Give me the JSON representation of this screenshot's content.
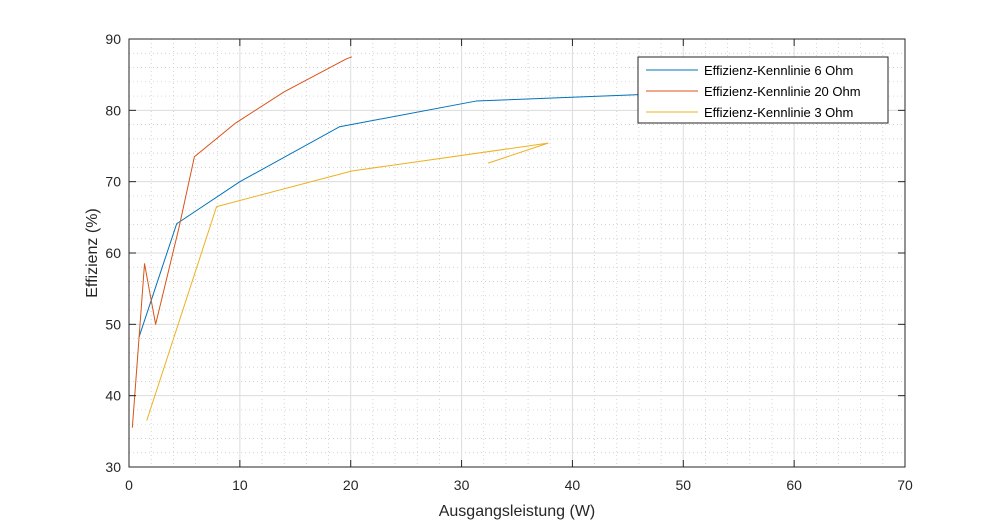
{
  "chart_data": {
    "type": "line",
    "title": "",
    "xlabel": "Ausgangsleistung (W)",
    "ylabel": "Effizienz (%)",
    "xlim": [
      0,
      70
    ],
    "ylim": [
      30,
      90
    ],
    "xticks": [
      0,
      10,
      20,
      30,
      40,
      50,
      60,
      70
    ],
    "yticks": [
      30,
      40,
      50,
      60,
      70,
      80,
      90
    ],
    "grid": true,
    "minor_grid": true,
    "legend_position": "top-right",
    "series": [
      {
        "name": "Effizienz-Kennlinie 6 Ohm",
        "color": "#0072BD",
        "points": [
          [
            0.9,
            48.2
          ],
          [
            4.3,
            64.1
          ],
          [
            10.0,
            70.0
          ],
          [
            19.0,
            77.7
          ],
          [
            31.3,
            81.3
          ],
          [
            46.0,
            82.2
          ],
          [
            57.0,
            82.6
          ]
        ]
      },
      {
        "name": "Effizienz-Kennlinie 20 Ohm",
        "color": "#D95319",
        "points": [
          [
            0.3,
            35.5
          ],
          [
            0.9,
            48.0
          ],
          [
            1.4,
            58.5
          ],
          [
            2.4,
            50.0
          ],
          [
            4.5,
            63.5
          ],
          [
            5.9,
            73.5
          ],
          [
            9.6,
            78.2
          ],
          [
            14.0,
            82.6
          ],
          [
            19.6,
            87.2
          ],
          [
            20.1,
            87.5
          ]
        ]
      },
      {
        "name": "Effizienz-Kennlinie 3 Ohm",
        "color": "#EDB120",
        "points": [
          [
            1.6,
            36.5
          ],
          [
            7.9,
            66.5
          ],
          [
            20.1,
            71.5
          ],
          [
            37.8,
            75.4
          ],
          [
            32.4,
            72.6
          ]
        ]
      }
    ]
  }
}
